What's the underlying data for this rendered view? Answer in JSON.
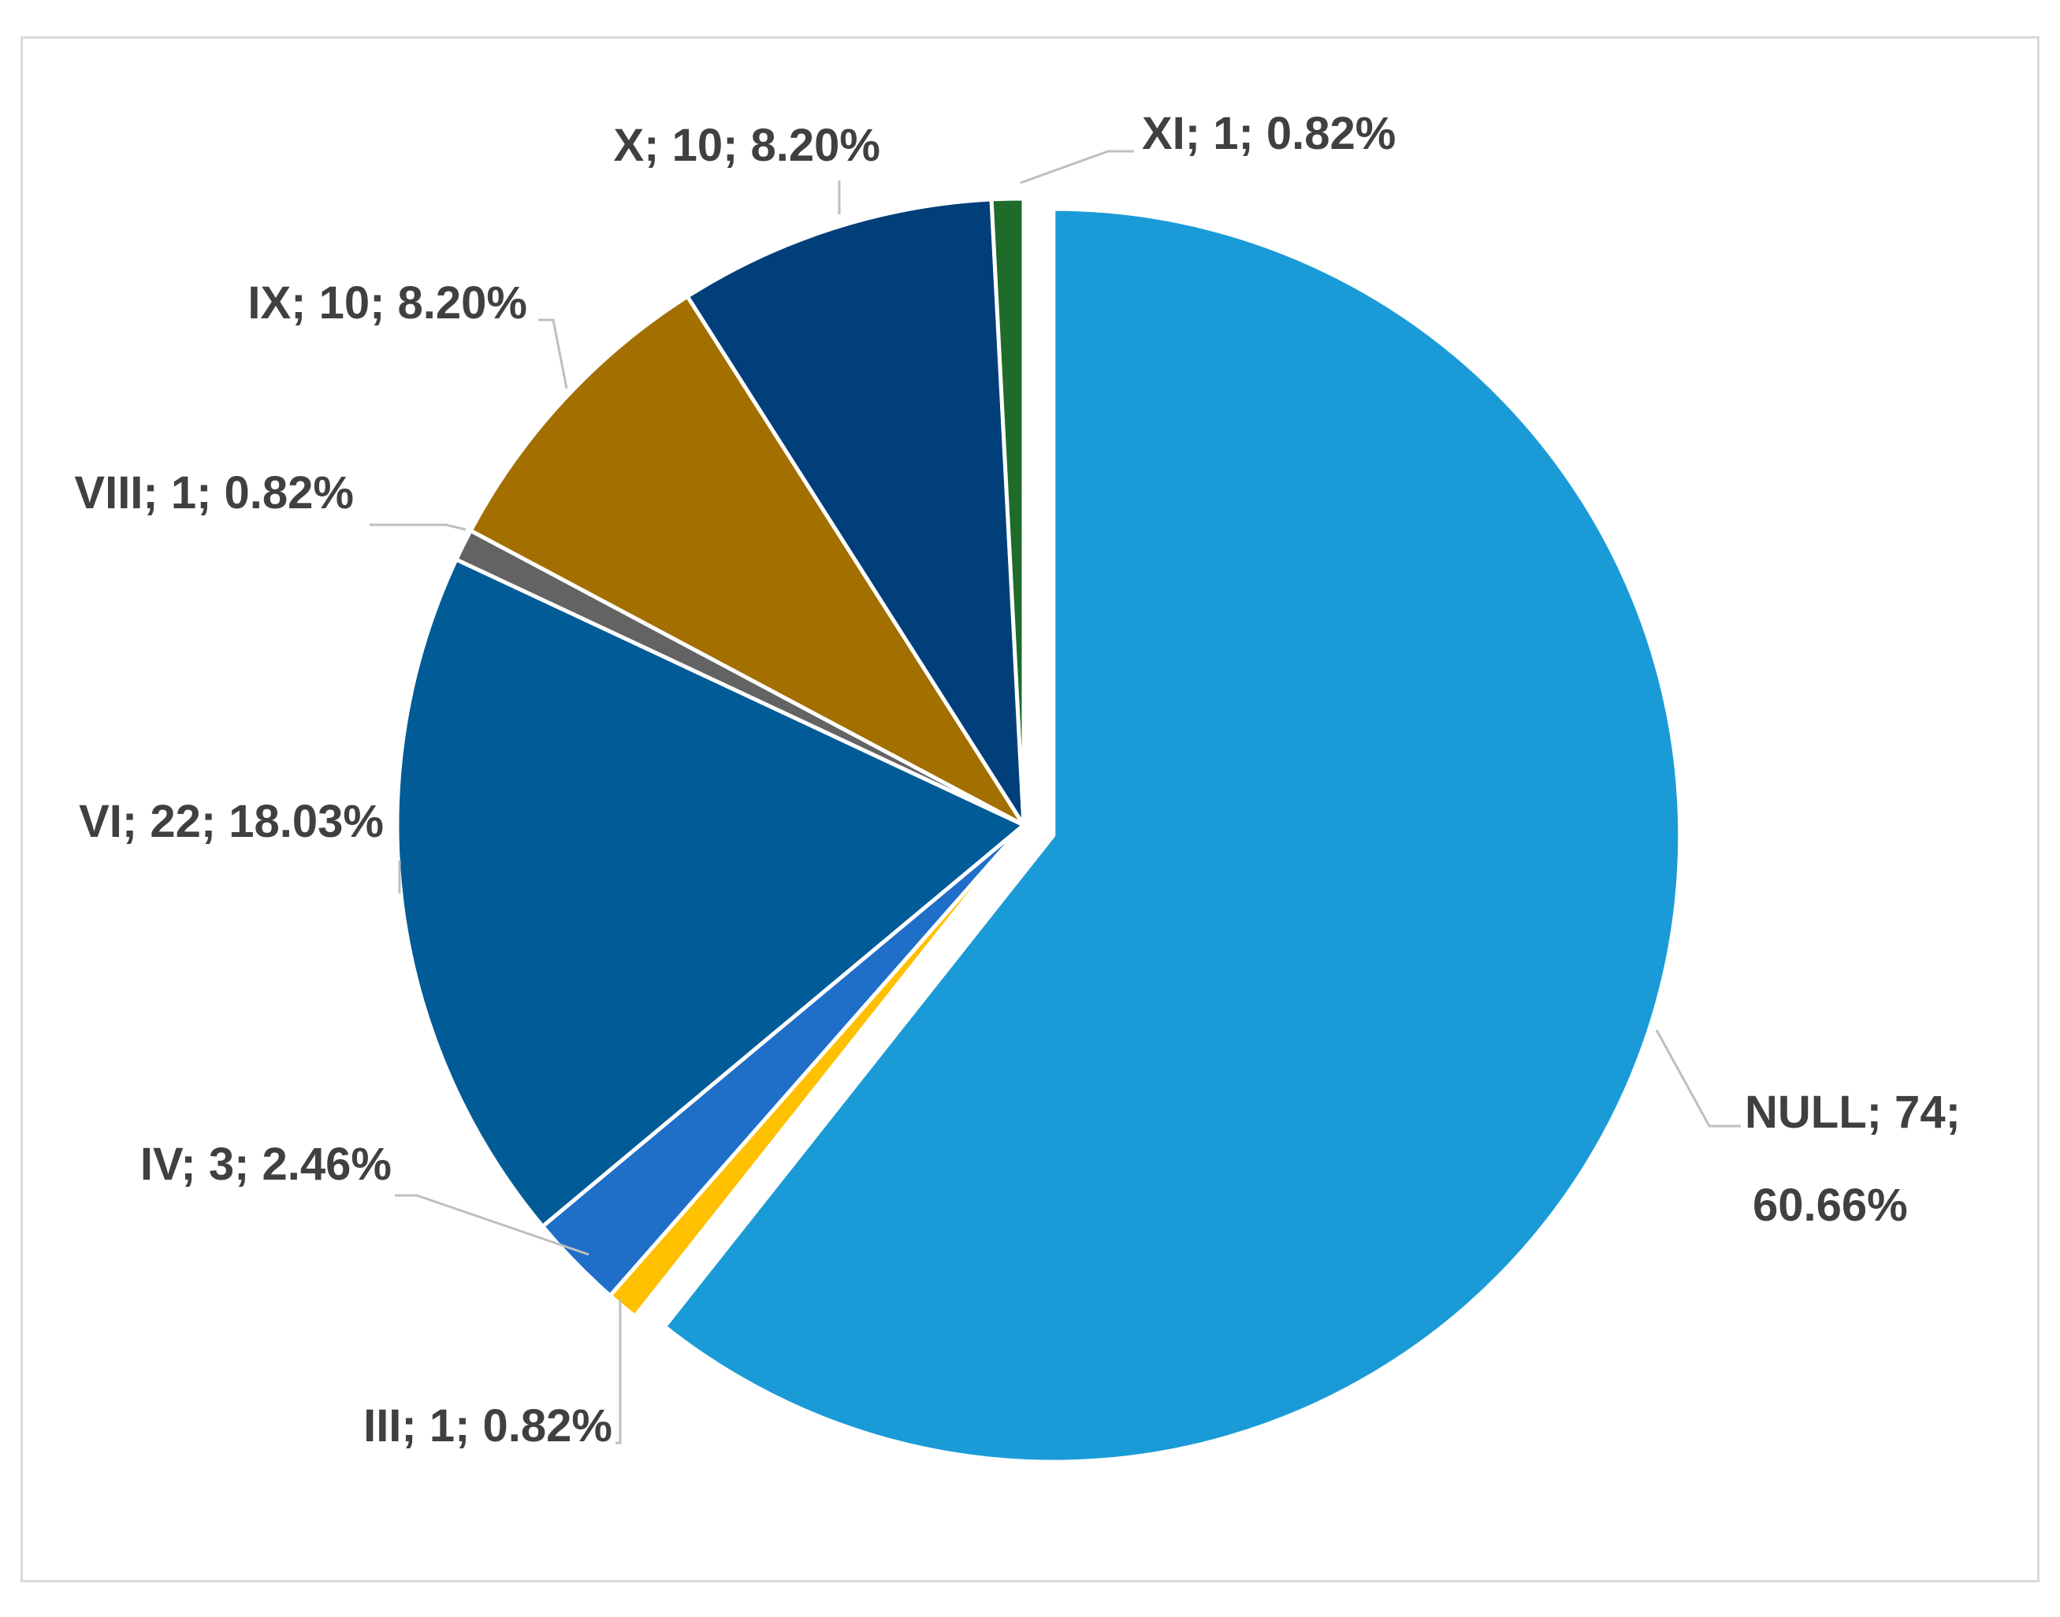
{
  "chart_data": {
    "type": "pie",
    "title": "",
    "slices": [
      {
        "name": "NULL",
        "value": 74,
        "percent": "60.66%",
        "label_line1": "NULL; 74;",
        "label_line2": "60.66%",
        "color": "#1a9bd7",
        "exploded": true
      },
      {
        "name": "III",
        "value": 1,
        "percent": "0.82%",
        "label_line1": "III; 1; 0.82%",
        "label_line2": "",
        "color": "#ffc000",
        "exploded": false
      },
      {
        "name": "IV",
        "value": 3,
        "percent": "2.46%",
        "label_line1": "IV; 3; 2.46%",
        "label_line2": "",
        "color": "#1f6fc8",
        "exploded": false
      },
      {
        "name": "VI",
        "value": 22,
        "percent": "18.03%",
        "label_line1": "VI; 22; 18.03%",
        "label_line2": "",
        "color": "#005b96",
        "exploded": false
      },
      {
        "name": "VIII",
        "value": 1,
        "percent": "0.82%",
        "label_line1": "VIII; 1; 0.82%",
        "label_line2": "",
        "color": "#636363",
        "exploded": false
      },
      {
        "name": "IX",
        "value": 10,
        "percent": "8.20%",
        "label_line1": "IX; 10; 8.20%",
        "label_line2": "",
        "color": "#a36f00",
        "exploded": false
      },
      {
        "name": "X",
        "value": 10,
        "percent": "8.20%",
        "label_line1": "X; 10; 8.20%",
        "label_line2": "",
        "color": "#003f7a",
        "exploded": false
      },
      {
        "name": "XI",
        "value": 1,
        "percent": "0.82%",
        "label_line1": "XI; 1; 0.82%",
        "label_line2": "",
        "color": "#1f6b2a",
        "exploded": false
      }
    ],
    "legend": "none"
  }
}
